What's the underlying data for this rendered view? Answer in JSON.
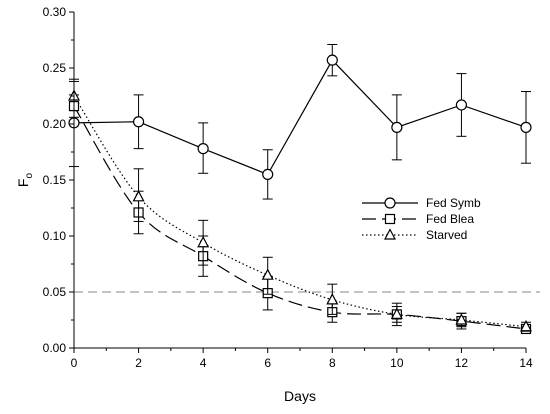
{
  "chart_data": {
    "type": "line",
    "title": "",
    "xlabel": "Days",
    "ylabel": "F",
    "ylabel_subscript": "o",
    "xlim": [
      0,
      14
    ],
    "ylim": [
      0,
      0.3
    ],
    "x_ticks": [
      0,
      2,
      4,
      6,
      8,
      10,
      12,
      14
    ],
    "y_ticks": [
      0.0,
      0.05,
      0.1,
      0.15,
      0.2,
      0.25,
      0.3
    ],
    "x_tick_labels": [
      "0",
      "2",
      "4",
      "6",
      "8",
      "10",
      "12",
      "14"
    ],
    "y_tick_labels": [
      "0.00",
      "0.05",
      "0.10",
      "0.15",
      "0.20",
      "0.25",
      "0.30"
    ],
    "grid": false,
    "legend_position": "right",
    "reference_line": {
      "y": 0.05,
      "style": "dashed",
      "color": "#888888"
    },
    "series": [
      {
        "name": "Fed Symb",
        "marker": "circle",
        "line_style": "solid",
        "color": "#000000",
        "x": [
          0,
          2,
          4,
          6,
          8,
          10,
          12,
          14
        ],
        "y": [
          0.201,
          0.202,
          0.178,
          0.155,
          0.257,
          0.197,
          0.217,
          0.197
        ],
        "err_low": [
          0.162,
          0.178,
          0.156,
          0.133,
          0.243,
          0.168,
          0.189,
          0.165
        ],
        "err_high": [
          0.24,
          0.226,
          0.201,
          0.177,
          0.271,
          0.226,
          0.245,
          0.229
        ]
      },
      {
        "name": "Fed Blea",
        "marker": "square",
        "line_style": "longdash",
        "color": "#000000",
        "x": [
          0,
          2,
          4,
          6,
          8,
          10,
          12,
          14
        ],
        "y": [
          0.216,
          0.121,
          0.082,
          0.049,
          0.032,
          0.03,
          0.024,
          0.017
        ],
        "err_low": [
          0.206,
          0.102,
          0.064,
          0.034,
          0.023,
          0.02,
          0.017,
          0.013
        ],
        "err_high": [
          0.226,
          0.14,
          0.1,
          0.064,
          0.041,
          0.04,
          0.031,
          0.021
        ]
      },
      {
        "name": "Starved",
        "marker": "triangle",
        "line_style": "dotted",
        "color": "#000000",
        "x": [
          0,
          2,
          4,
          6,
          8,
          10,
          12,
          14
        ],
        "y": [
          0.225,
          0.135,
          0.094,
          0.065,
          0.043,
          0.03,
          0.025,
          0.019
        ],
        "err_low": [
          0.212,
          0.113,
          0.074,
          0.048,
          0.03,
          0.023,
          0.019,
          0.015
        ],
        "err_high": [
          0.238,
          0.16,
          0.114,
          0.081,
          0.057,
          0.037,
          0.031,
          0.023
        ]
      }
    ]
  }
}
